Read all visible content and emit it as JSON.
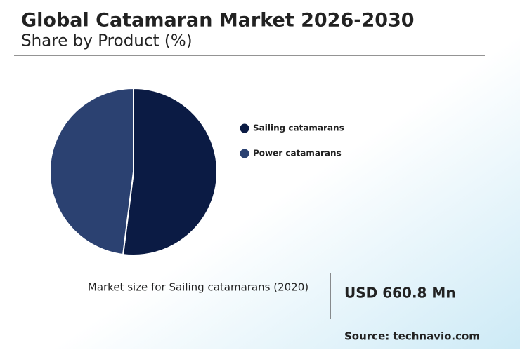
{
  "chart_data": {
    "type": "pie",
    "title": "Global Catamaran Market 2026-2030",
    "subtitle": "Share by Product (%)",
    "categories": [
      "Sailing catamarans",
      "Power catamarans"
    ],
    "values": [
      52,
      48
    ],
    "colors": [
      "#0b1b44",
      "#2b4171"
    ],
    "annotation_label": "Market size for Sailing catamarans (2020)",
    "annotation_value": "USD 660.8 Mn",
    "source": "Source: technavio.com"
  }
}
